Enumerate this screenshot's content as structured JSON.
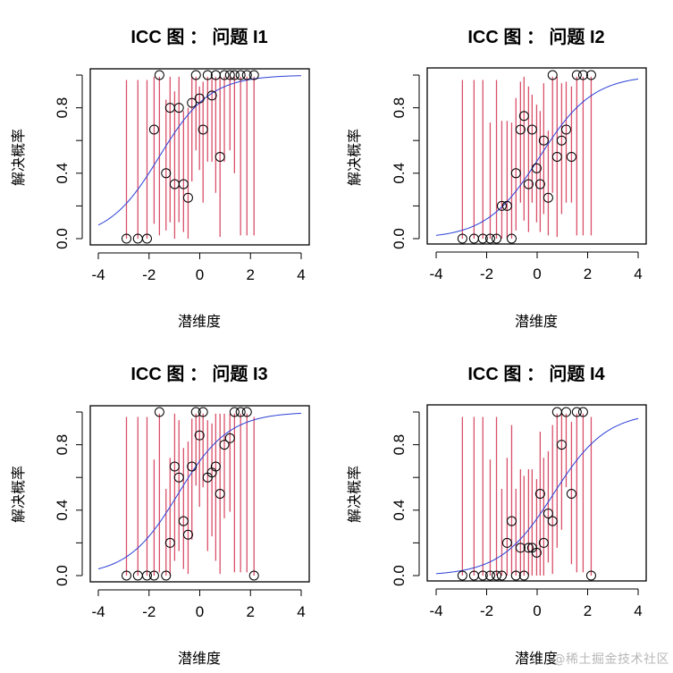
{
  "watermark": "@稀土掘金技术社区",
  "chart_data": [
    {
      "type": "scatter",
      "title": "ICC 图 ： 问题   I1",
      "xlabel": "潜维度",
      "ylabel": "解决概率",
      "xlim": [
        -4,
        4
      ],
      "ylim": [
        0,
        1
      ],
      "xticks": [
        "-4",
        "-2",
        "0",
        "2",
        "4"
      ],
      "yticks": [
        "0.0",
        "0.2",
        "0.4",
        "0.6",
        "0.8",
        "1.0"
      ],
      "ytick_labels_shown": [
        "0.0",
        "0.4",
        "0.8"
      ],
      "grid": false,
      "curve": {
        "name": "ICC",
        "color": "#2b3fd6",
        "discrimination": 1.0,
        "difficulty": -1.6
      },
      "points": {
        "x": [
          -2.89,
          -2.44,
          -2.08,
          -1.8,
          -1.59,
          -1.33,
          -1.17,
          -0.99,
          -0.82,
          -0.64,
          -0.46,
          -0.31,
          -0.15,
          -0.01,
          0.13,
          0.31,
          0.48,
          0.63,
          0.8,
          0.97,
          1.19,
          1.37,
          1.61,
          1.86,
          2.14
        ],
        "y": [
          0,
          0,
          0,
          0.667,
          1.0,
          0.4,
          0.8,
          0.333,
          0.8,
          0.333,
          0.25,
          0.83,
          1.0,
          0.857,
          0.667,
          1.0,
          0.875,
          1.0,
          0.5,
          1.0,
          1.0,
          1.0,
          1.0,
          1.0,
          1.0
        ]
      },
      "error_bars": {
        "color": "#d9506a",
        "low": [
          0,
          0,
          0,
          0.09,
          0.02,
          0.05,
          0.1,
          0.0,
          0.1,
          0.04,
          0.0,
          0.35,
          0.54,
          0.42,
          0.22,
          0.47,
          0.47,
          0.28,
          0.01,
          0.47,
          0.54,
          0.4,
          0.02,
          0.02,
          0.02
        ],
        "high": [
          0.97,
          0.97,
          0.97,
          0.99,
          0.99,
          0.85,
          0.99,
          0.9,
          0.99,
          0.78,
          0.8,
          0.99,
          0.99,
          0.93,
          0.96,
          0.99,
          0.99,
          0.99,
          0.99,
          0.99,
          0.99,
          0.99,
          0.99,
          0.99,
          0.99
        ]
      }
    },
    {
      "type": "scatter",
      "title": "ICC 图 ： 问题   I2",
      "xlabel": "潜维度",
      "ylabel": "解决概率",
      "xlim": [
        -4,
        4
      ],
      "ylim": [
        0,
        1
      ],
      "xticks": [
        "-4",
        "-2",
        "0",
        "2",
        "4"
      ],
      "yticks": [
        "0.0",
        "0.2",
        "0.4",
        "0.6",
        "0.8",
        "1.0"
      ],
      "ytick_labels_shown": [
        "0.0",
        "0.4",
        "0.8"
      ],
      "grid": false,
      "curve": {
        "name": "ICC",
        "color": "#2b3fd6",
        "discrimination": 0.95,
        "difficulty": 0.1
      },
      "points": {
        "x": [
          -2.96,
          -2.5,
          -2.15,
          -1.86,
          -1.61,
          -1.4,
          -1.19,
          -1.01,
          -0.84,
          -0.66,
          -0.52,
          -0.34,
          -0.2,
          -0.02,
          0.12,
          0.26,
          0.44,
          0.61,
          0.79,
          0.97,
          1.15,
          1.36,
          1.57,
          1.82,
          2.14
        ],
        "y": [
          0,
          0,
          0,
          0,
          0,
          0.2,
          0.2,
          0,
          0.4,
          0.667,
          0.75,
          0.333,
          0.667,
          0.43,
          0.333,
          0.6,
          0.25,
          1.0,
          0.5,
          0.6,
          0.667,
          0.5,
          1.0,
          1.0,
          1.0
        ]
      },
      "error_bars": {
        "color": "#d9506a",
        "low": [
          0,
          0,
          0,
          0,
          0,
          0,
          0,
          0,
          0.05,
          0.22,
          0.11,
          0.04,
          0.22,
          0.1,
          0.04,
          0.15,
          0.02,
          0.28,
          0.01,
          0.15,
          0.22,
          0.22,
          0.02,
          0.02,
          0.02
        ],
        "high": [
          0.97,
          0.97,
          0.97,
          0.71,
          0.97,
          0.72,
          0.72,
          0.71,
          0.86,
          0.96,
          0.99,
          0.93,
          0.88,
          0.82,
          0.78,
          0.95,
          0.66,
          0.99,
          0.99,
          0.95,
          0.96,
          0.93,
          0.99,
          0.99,
          0.99
        ]
      }
    },
    {
      "type": "scatter",
      "title": "ICC 图 ： 问题   I3",
      "xlabel": "潜维度",
      "ylabel": "解决概率",
      "xlim": [
        -4,
        4
      ],
      "ylim": [
        0,
        1
      ],
      "xticks": [
        "-4",
        "-2",
        "0",
        "2",
        "4"
      ],
      "yticks": [
        "0.0",
        "0.2",
        "0.4",
        "0.6",
        "0.8",
        "1.0"
      ],
      "ytick_labels_shown": [
        "0.0",
        "0.4",
        "0.8"
      ],
      "grid": false,
      "curve": {
        "name": "ICC",
        "color": "#2b3fd6",
        "discrimination": 1.0,
        "difficulty": -0.85
      },
      "points": {
        "x": [
          -2.89,
          -2.44,
          -2.08,
          -1.8,
          -1.59,
          -1.33,
          -1.17,
          -0.99,
          -0.82,
          -0.64,
          -0.46,
          -0.31,
          -0.15,
          -0.01,
          0.13,
          0.31,
          0.48,
          0.63,
          0.8,
          0.97,
          1.19,
          1.37,
          1.61,
          1.86,
          2.14
        ],
        "y": [
          0,
          0,
          0,
          0,
          1.0,
          0,
          0.2,
          0.667,
          0.6,
          0.333,
          0.25,
          0.667,
          1.0,
          0.857,
          1.0,
          0.6,
          0.63,
          0.667,
          0.5,
          0.8,
          0.84,
          1.0,
          1.0,
          1.0,
          0
        ]
      },
      "error_bars": {
        "color": "#d9506a",
        "low": [
          0,
          0,
          0,
          0,
          0.02,
          0,
          0,
          0.09,
          0.15,
          0.04,
          0.01,
          0.22,
          0.55,
          0.42,
          0.54,
          0.15,
          0.24,
          0.09,
          0.01,
          0.35,
          0.39,
          0.02,
          0.02,
          0.02,
          0
        ],
        "high": [
          0.97,
          0.97,
          0.97,
          0.71,
          0.99,
          0.53,
          0.72,
          0.99,
          0.95,
          0.78,
          0.82,
          0.96,
          0.99,
          0.98,
          0.99,
          0.95,
          0.93,
          0.99,
          0.99,
          0.99,
          0.99,
          0.99,
          0.99,
          0.99,
          0.97
        ]
      }
    },
    {
      "type": "scatter",
      "title": "ICC 图 ： 问题   I4",
      "xlabel": "潜维度",
      "ylabel": "解决概率",
      "xlim": [
        -4,
        4
      ],
      "ylim": [
        0,
        1
      ],
      "xticks": [
        "-4",
        "-2",
        "0",
        "2",
        "4"
      ],
      "yticks": [
        "0.0",
        "0.2",
        "0.4",
        "0.6",
        "0.8",
        "1.0"
      ],
      "ytick_labels_shown": [
        "0.0",
        "0.4",
        "0.8"
      ],
      "grid": false,
      "curve": {
        "name": "ICC",
        "color": "#2b3fd6",
        "discrimination": 0.95,
        "difficulty": 0.65
      },
      "points": {
        "x": [
          -2.96,
          -2.5,
          -2.15,
          -1.86,
          -1.61,
          -1.4,
          -1.19,
          -1.01,
          -0.84,
          -0.66,
          -0.52,
          -0.34,
          -0.2,
          -0.02,
          0.12,
          0.26,
          0.44,
          0.61,
          0.79,
          0.97,
          1.15,
          1.36,
          1.57,
          1.82,
          2.14
        ],
        "y": [
          0,
          0,
          0,
          0,
          0,
          0,
          0.2,
          0.333,
          0,
          0.17,
          0,
          0.17,
          0.17,
          0.14,
          0.5,
          0.2,
          0.38,
          0.333,
          1.0,
          0.8,
          1.0,
          0.5,
          1.0,
          1.0,
          0
        ]
      },
      "error_bars": {
        "color": "#d9506a",
        "low": [
          0,
          0,
          0,
          0,
          0,
          0,
          0,
          0.01,
          0,
          0.01,
          0,
          0,
          0,
          0,
          0,
          0,
          0.08,
          0.01,
          0.17,
          0.28,
          0.54,
          0.07,
          0.02,
          0.02,
          0
        ],
        "high": [
          0.97,
          0.97,
          0.97,
          0.71,
          0.97,
          0.53,
          0.72,
          0.92,
          0.53,
          0.65,
          0.61,
          0.65,
          0.65,
          0.59,
          0.88,
          0.72,
          0.76,
          0.92,
          0.99,
          0.99,
          0.99,
          0.94,
          0.99,
          0.99,
          0.97
        ]
      }
    }
  ]
}
